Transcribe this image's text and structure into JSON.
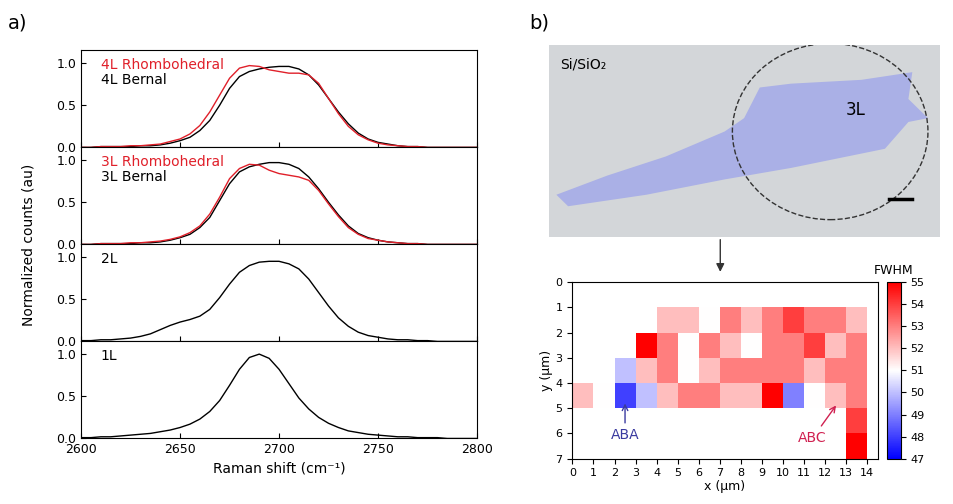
{
  "panel_labels": [
    "a)",
    "b)"
  ],
  "shared_ylabel": "Normalized counts (au)",
  "image": {
    "substrate": "Si/SiO₂",
    "layer": "3L"
  },
  "chart_data": [
    {
      "type": "line",
      "x": [
        2600,
        2605,
        2610,
        2615,
        2620,
        2625,
        2630,
        2635,
        2640,
        2645,
        2650,
        2655,
        2660,
        2665,
        2670,
        2675,
        2680,
        2685,
        2690,
        2695,
        2700,
        2705,
        2710,
        2715,
        2720,
        2725,
        2730,
        2735,
        2740,
        2745,
        2750,
        2755,
        2760,
        2765,
        2770,
        2775,
        2780,
        2785,
        2790,
        2795,
        2800
      ],
      "series": [
        {
          "name": "4L Rhombohedral",
          "color": "#e0202a",
          "values": [
            0.0,
            0.0,
            0.01,
            0.01,
            0.01,
            0.02,
            0.02,
            0.03,
            0.04,
            0.07,
            0.1,
            0.16,
            0.26,
            0.42,
            0.62,
            0.82,
            0.94,
            0.97,
            0.96,
            0.92,
            0.9,
            0.88,
            0.88,
            0.86,
            0.76,
            0.58,
            0.4,
            0.25,
            0.15,
            0.09,
            0.05,
            0.03,
            0.02,
            0.01,
            0.01,
            0.0,
            0.0,
            0.0,
            0.0,
            0.0,
            0.0
          ]
        },
        {
          "name": "4L Bernal",
          "color": "#000000",
          "values": [
            0.0,
            0.0,
            0.01,
            0.01,
            0.01,
            0.01,
            0.02,
            0.02,
            0.03,
            0.05,
            0.08,
            0.12,
            0.2,
            0.32,
            0.5,
            0.7,
            0.84,
            0.9,
            0.93,
            0.95,
            0.96,
            0.96,
            0.93,
            0.86,
            0.74,
            0.58,
            0.42,
            0.28,
            0.17,
            0.1,
            0.06,
            0.04,
            0.02,
            0.01,
            0.01,
            0.0,
            0.0,
            0.0,
            0.0,
            0.0,
            0.0
          ]
        }
      ],
      "xlim": [
        2600,
        2800
      ],
      "xticks": [
        2600,
        2650,
        2700,
        2750,
        2800
      ],
      "ylim": [
        0,
        1.15
      ],
      "yticks": [
        {
          "value": 0,
          "label": "0.0"
        },
        {
          "value": 0.5,
          "label": "0.5"
        },
        {
          "value": 1.0,
          "label": "1.0"
        }
      ],
      "tick_labels": "y"
    },
    {
      "type": "line",
      "x": [
        2600,
        2605,
        2610,
        2615,
        2620,
        2625,
        2630,
        2635,
        2640,
        2645,
        2650,
        2655,
        2660,
        2665,
        2670,
        2675,
        2680,
        2685,
        2690,
        2695,
        2700,
        2705,
        2710,
        2715,
        2720,
        2725,
        2730,
        2735,
        2740,
        2745,
        2750,
        2755,
        2760,
        2765,
        2770,
        2775,
        2780,
        2785,
        2790,
        2795,
        2800
      ],
      "series": [
        {
          "name": "3L Rhombohedral",
          "color": "#e0202a",
          "values": [
            0.0,
            0.0,
            0.01,
            0.01,
            0.01,
            0.02,
            0.02,
            0.03,
            0.04,
            0.06,
            0.09,
            0.14,
            0.22,
            0.36,
            0.56,
            0.78,
            0.9,
            0.95,
            0.94,
            0.88,
            0.84,
            0.82,
            0.8,
            0.76,
            0.64,
            0.48,
            0.33,
            0.2,
            0.12,
            0.07,
            0.05,
            0.03,
            0.02,
            0.01,
            0.01,
            0.0,
            0.0,
            0.0,
            0.0,
            0.0,
            0.0
          ]
        },
        {
          "name": "3L Bernal",
          "color": "#000000",
          "values": [
            0.0,
            0.0,
            0.01,
            0.01,
            0.01,
            0.01,
            0.02,
            0.02,
            0.03,
            0.05,
            0.08,
            0.12,
            0.2,
            0.32,
            0.52,
            0.72,
            0.86,
            0.92,
            0.95,
            0.97,
            0.97,
            0.95,
            0.9,
            0.8,
            0.66,
            0.5,
            0.35,
            0.22,
            0.13,
            0.08,
            0.05,
            0.03,
            0.02,
            0.01,
            0.01,
            0.0,
            0.0,
            0.0,
            0.0,
            0.0,
            0.0
          ]
        }
      ],
      "xlim": [
        2600,
        2800
      ],
      "xticks": [
        2600,
        2650,
        2700,
        2750,
        2800
      ],
      "ylim": [
        0,
        1.15
      ],
      "yticks": [
        {
          "value": 0,
          "label": "0.0"
        },
        {
          "value": 0.5,
          "label": "0.5"
        },
        {
          "value": 1.0,
          "label": "1.0"
        }
      ],
      "tick_labels": "y"
    },
    {
      "type": "line",
      "x": [
        2600,
        2605,
        2610,
        2615,
        2620,
        2625,
        2630,
        2635,
        2640,
        2645,
        2650,
        2655,
        2660,
        2665,
        2670,
        2675,
        2680,
        2685,
        2690,
        2695,
        2700,
        2705,
        2710,
        2715,
        2720,
        2725,
        2730,
        2735,
        2740,
        2745,
        2750,
        2755,
        2760,
        2765,
        2770,
        2775,
        2780,
        2785,
        2790,
        2795,
        2800
      ],
      "series": [
        {
          "name": "2L",
          "color": "#000000",
          "values": [
            0.01,
            0.01,
            0.02,
            0.02,
            0.03,
            0.04,
            0.06,
            0.09,
            0.14,
            0.19,
            0.23,
            0.26,
            0.3,
            0.38,
            0.52,
            0.68,
            0.82,
            0.9,
            0.94,
            0.95,
            0.95,
            0.92,
            0.86,
            0.74,
            0.58,
            0.42,
            0.28,
            0.18,
            0.11,
            0.07,
            0.05,
            0.03,
            0.02,
            0.02,
            0.01,
            0.01,
            0.0,
            0.0,
            0.0,
            0.0,
            0.0
          ]
        }
      ],
      "xlim": [
        2600,
        2800
      ],
      "xticks": [
        2600,
        2650,
        2700,
        2750,
        2800
      ],
      "ylim": [
        0,
        1.15
      ],
      "yticks": [
        {
          "value": 0,
          "label": "0.0"
        },
        {
          "value": 0.5,
          "label": "0.5"
        },
        {
          "value": 1.0,
          "label": "1.0"
        }
      ],
      "tick_labels": "y"
    },
    {
      "type": "line",
      "x": [
        2600,
        2605,
        2610,
        2615,
        2620,
        2625,
        2630,
        2635,
        2640,
        2645,
        2650,
        2655,
        2660,
        2665,
        2670,
        2675,
        2680,
        2685,
        2690,
        2695,
        2700,
        2705,
        2710,
        2715,
        2720,
        2725,
        2730,
        2735,
        2740,
        2745,
        2750,
        2755,
        2760,
        2765,
        2770,
        2775,
        2780,
        2785,
        2790,
        2795,
        2800
      ],
      "series": [
        {
          "name": "1L",
          "color": "#000000",
          "values": [
            0.01,
            0.01,
            0.02,
            0.02,
            0.03,
            0.04,
            0.05,
            0.06,
            0.08,
            0.1,
            0.13,
            0.17,
            0.23,
            0.32,
            0.45,
            0.63,
            0.82,
            0.96,
            1.0,
            0.95,
            0.82,
            0.65,
            0.48,
            0.35,
            0.25,
            0.18,
            0.13,
            0.09,
            0.07,
            0.05,
            0.04,
            0.03,
            0.02,
            0.02,
            0.01,
            0.01,
            0.01,
            0.0,
            0.0,
            0.0,
            0.0
          ]
        }
      ],
      "xlabel": "Raman shift (cm⁻¹)",
      "xlim": [
        2600,
        2800
      ],
      "xticks": [
        2600,
        2650,
        2700,
        2750,
        2800
      ],
      "ylim": [
        0,
        1.15
      ],
      "yticks": [
        {
          "value": 0,
          "label": "0.0"
        },
        {
          "value": 0.5,
          "label": "0.5"
        },
        {
          "value": 1.0,
          "label": "1.0"
        }
      ]
    },
    {
      "type": "heatmap",
      "x_edges": [
        0,
        1,
        2,
        3,
        4,
        5,
        6,
        7,
        8,
        9,
        10,
        11,
        12,
        13,
        14
      ],
      "y_edges": [
        0,
        1,
        2,
        3,
        4,
        5,
        6,
        7
      ],
      "values": [
        [
          null,
          null,
          null,
          null,
          null,
          null,
          null,
          null,
          null,
          null,
          null,
          null,
          null,
          null
        ],
        [
          null,
          null,
          null,
          null,
          52,
          52,
          51,
          53,
          52,
          53,
          54,
          53,
          53,
          52
        ],
        [
          null,
          null,
          null,
          55,
          53,
          51,
          53,
          52,
          51,
          53,
          53,
          54,
          52,
          53
        ],
        [
          null,
          null,
          50,
          52,
          53,
          51,
          52,
          53,
          53,
          53,
          53,
          52,
          53,
          53
        ],
        [
          52,
          51,
          48,
          50,
          52,
          53,
          53,
          52,
          52,
          55,
          49,
          51,
          52,
          53
        ],
        [
          null,
          null,
          null,
          null,
          null,
          null,
          null,
          null,
          null,
          null,
          null,
          null,
          null,
          54
        ],
        [
          null,
          null,
          null,
          null,
          null,
          null,
          null,
          null,
          null,
          null,
          null,
          null,
          null,
          55
        ]
      ],
      "xlabel": "x (μm)",
      "ylabel": "y (μm)",
      "xlim": [
        0,
        14.5
      ],
      "xticks": [
        0,
        1,
        2,
        3,
        4,
        5,
        6,
        7,
        8,
        9,
        10,
        11,
        12,
        13,
        14
      ],
      "ylim": [
        7,
        0
      ],
      "yticks": [
        0,
        1,
        2,
        3,
        4,
        5,
        6,
        7
      ],
      "colorbar": {
        "title": "FWHM",
        "range": [
          47,
          55
        ],
        "ticks": [
          47,
          48,
          49,
          50,
          51,
          52,
          53,
          54,
          55
        ]
      },
      "annotations": [
        {
          "text": "ABA",
          "x": 2.5,
          "y": 4.7,
          "color": "#3a3aa0"
        },
        {
          "text": "ABC",
          "x": 12.6,
          "y": 4.8,
          "color": "#d02050"
        }
      ]
    }
  ]
}
